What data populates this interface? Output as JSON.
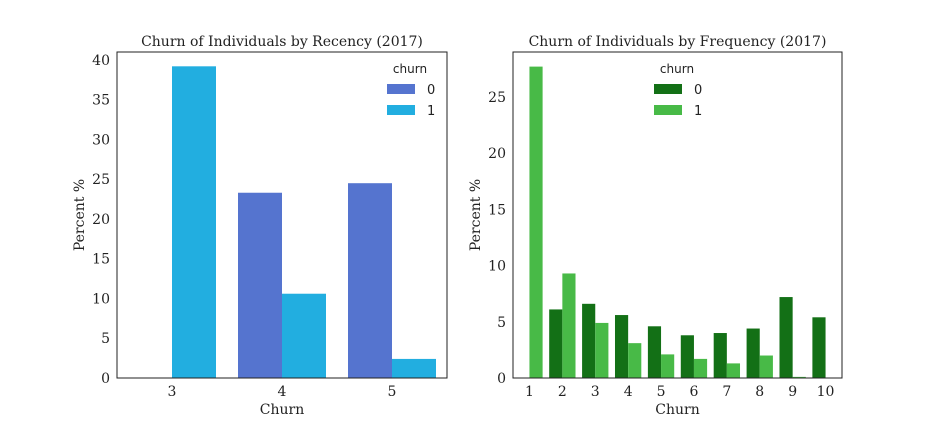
{
  "chart_data": [
    {
      "type": "bar",
      "title": "Churn of Individuals by Recency (2017)",
      "xlabel": "Churn",
      "ylabel": "Percent %",
      "categories": [
        "3",
        "4",
        "5"
      ],
      "ylim": [
        0,
        41
      ],
      "yticks": [
        0,
        5,
        10,
        15,
        20,
        25,
        30,
        35,
        40
      ],
      "legend_title": "churn",
      "legend_position": "top-right",
      "series": [
        {
          "name": "0",
          "color": "#5574cf",
          "values": [
            0,
            23.3,
            24.5
          ]
        },
        {
          "name": "1",
          "color": "#22aee0",
          "values": [
            39.2,
            10.6,
            2.4
          ]
        }
      ]
    },
    {
      "type": "bar",
      "title": "Churn of Individuals by Frequency (2017)",
      "xlabel": "Churn",
      "ylabel": "Percent %",
      "categories": [
        "1",
        "2",
        "3",
        "4",
        "5",
        "6",
        "7",
        "8",
        "9",
        "10"
      ],
      "ylim": [
        0,
        29
      ],
      "yticks": [
        0,
        5,
        10,
        15,
        20,
        25
      ],
      "legend_title": "churn",
      "legend_position": "top-center",
      "series": [
        {
          "name": "0",
          "color": "#137016",
          "values": [
            0,
            6.1,
            6.6,
            5.6,
            4.6,
            3.8,
            4.0,
            4.4,
            7.2,
            5.4
          ]
        },
        {
          "name": "1",
          "color": "#48ba47",
          "values": [
            27.7,
            9.3,
            4.9,
            3.1,
            2.1,
            1.7,
            1.3,
            2.0,
            0.1,
            0
          ]
        }
      ]
    }
  ]
}
